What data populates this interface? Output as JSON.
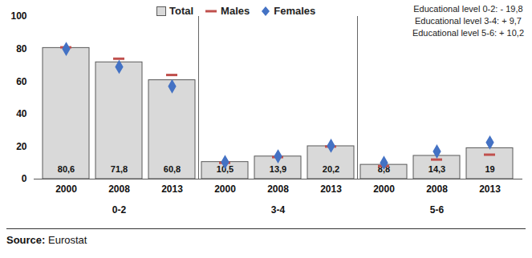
{
  "chart_data": {
    "type": "bar",
    "categories": [
      "2000",
      "2008",
      "2013",
      "2000",
      "2008",
      "2013",
      "2000",
      "2008",
      "2013"
    ],
    "category_groups": [
      "0-2",
      "0-2",
      "0-2",
      "3-4",
      "3-4",
      "3-4",
      "5-6",
      "5-6",
      "5-6"
    ],
    "series": [
      {
        "name": "Total",
        "type": "bar",
        "color": "#d9d9d9",
        "values": [
          80.6,
          71.8,
          60.8,
          10.5,
          13.9,
          20.2,
          8.8,
          14.3,
          19
        ],
        "value_labels": [
          "80,6",
          "71,8",
          "60,8",
          "10,5",
          "13,9",
          "20,2",
          "8,8",
          "14,3",
          "19"
        ]
      },
      {
        "name": "Males",
        "type": "scatter",
        "marker": "dash",
        "color": "#c0504d",
        "values": [
          81,
          74,
          64,
          10,
          13.5,
          20,
          8,
          12,
          15
        ]
      },
      {
        "name": "Females",
        "type": "scatter",
        "marker": "diamond",
        "color": "#4472c4",
        "values": [
          80,
          69,
          57,
          10.5,
          14,
          20.5,
          10,
          17,
          22.5
        ]
      }
    ],
    "ylim": [
      0,
      100
    ],
    "yticks": [
      0,
      20,
      40,
      60,
      80,
      100
    ],
    "grid": false,
    "data_labels": true,
    "legend": "top",
    "annotations": [
      "Educational level 0-2: - 19,8",
      "Educational level 3-4: + 9,7",
      "Educational level 5-6: + 10,2"
    ],
    "source_label": "Source:",
    "source": "Eurostat"
  }
}
